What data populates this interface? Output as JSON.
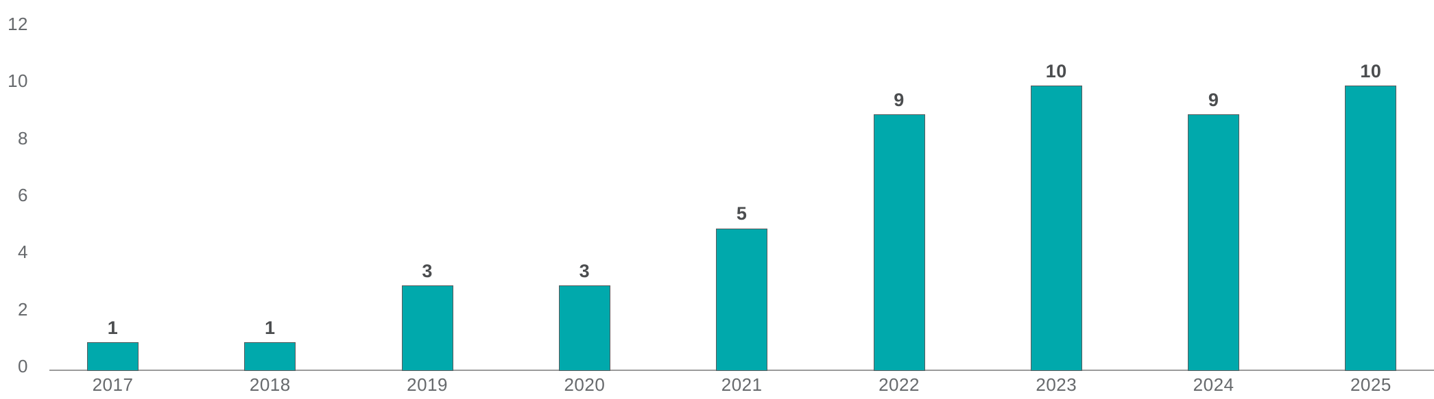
{
  "chart_data": {
    "type": "bar",
    "title": "",
    "xlabel": "",
    "ylabel": "",
    "categories": [
      "2017",
      "2018",
      "2019",
      "2020",
      "2021",
      "2022",
      "2023",
      "2024",
      "2025"
    ],
    "values": [
      1,
      1,
      3,
      3,
      5,
      9,
      10,
      9,
      10
    ],
    "data_labels": [
      "1",
      "1",
      "3",
      "3",
      "5",
      "9",
      "10",
      "9",
      "10"
    ],
    "yticks": [
      0,
      2,
      4,
      6,
      8,
      10,
      12
    ],
    "ylim": [
      0,
      12
    ],
    "grid": false,
    "legend": false,
    "colors": {
      "bar_fill": "#00A9AC",
      "bar_border": "#58595B",
      "data_label": "#4B4D4F",
      "tick_label": "#66696C",
      "axis_line": "#9B9B9B",
      "background": "#FFFFFF"
    }
  }
}
